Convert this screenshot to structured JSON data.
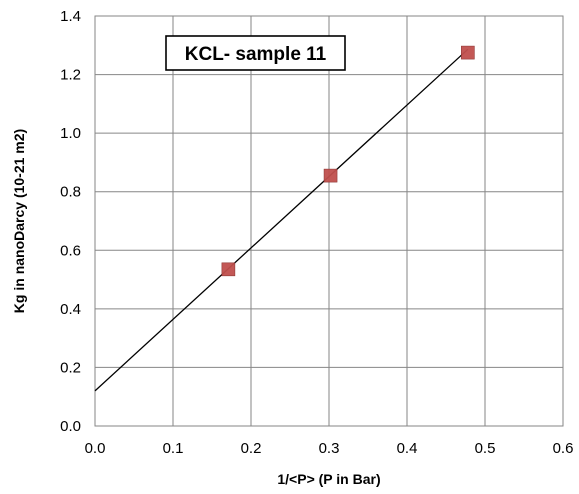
{
  "chart_data": {
    "type": "scatter",
    "title": "KCL- sample 11",
    "xlabel": "1/<P> (P in Bar)",
    "ylabel": "Kg in nanoDarcy (10-21 m2)",
    "xlim": [
      0,
      0.6
    ],
    "ylim": [
      0,
      1.4
    ],
    "x_ticks": [
      "0.0",
      "0.1",
      "0.2",
      "0.3",
      "0.4",
      "0.5",
      "0.6"
    ],
    "y_ticks": [
      "0.0",
      "0.2",
      "0.4",
      "0.6",
      "0.8",
      "1.0",
      "1.2",
      "1.4"
    ],
    "grid": true,
    "legend": "none",
    "series": [
      {
        "marker": "square",
        "color": "#c0504d",
        "points": [
          {
            "x": 0.171,
            "y": 0.535
          },
          {
            "x": 0.302,
            "y": 0.855
          },
          {
            "x": 0.478,
            "y": 1.275
          }
        ]
      }
    ],
    "trendline": {
      "type": "linear",
      "color": "#000000",
      "x_range": [
        0,
        0.478
      ],
      "slope": 2.44,
      "intercept": 0.12
    }
  }
}
